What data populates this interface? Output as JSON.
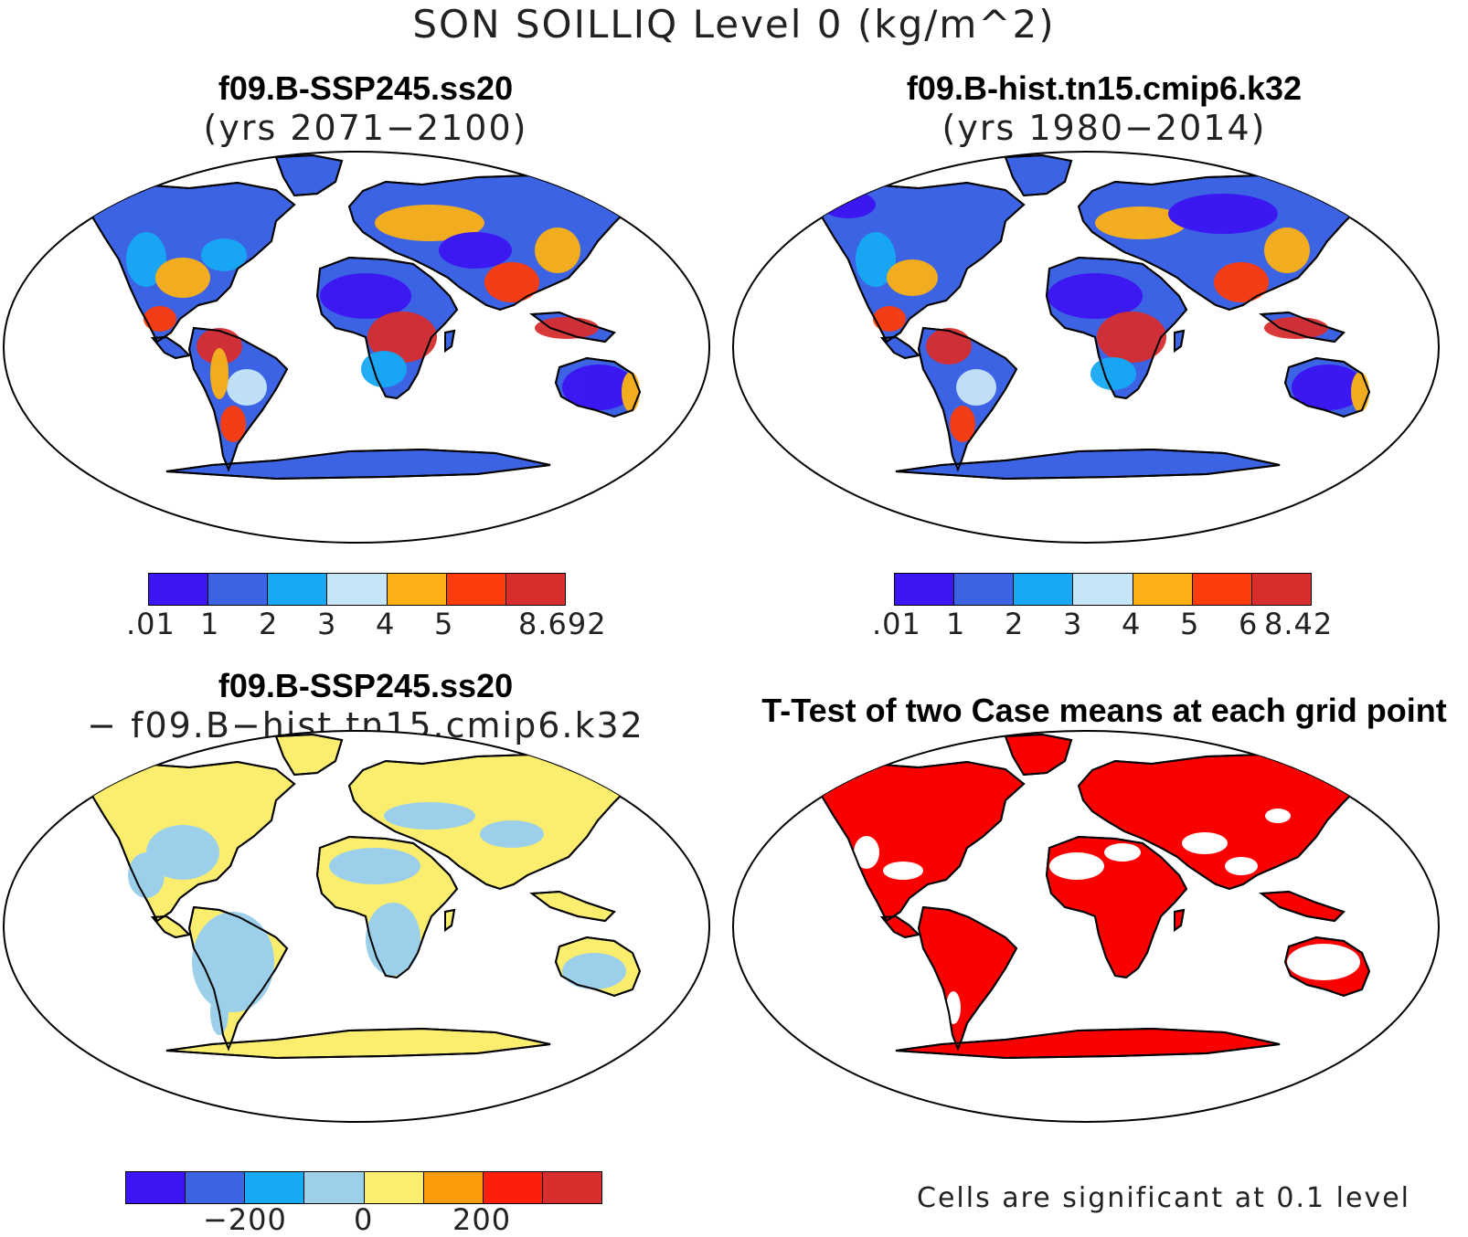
{
  "main_title": "SON SOILLIQ Level 0 (kg/m^2)",
  "panels": [
    {
      "title": "f09.B-SSP245.ss20",
      "subtitle": "(yrs 2071−2100)"
    },
    {
      "title": "f09.B-hist.tn15.cmip6.k32",
      "subtitle": "(yrs 1980−2014)"
    },
    {
      "title": "f09.B-SSP245.ss20",
      "subtitle": "− f09.B−hist.tn15.cmip6.k32"
    },
    {
      "title": "T-Test of two Case means at each grid point",
      "subtitle": ""
    }
  ],
  "colorbars": {
    "cb1": {
      "colors": [
        "#3c15f2",
        "#3c63e3",
        "#17a9f4",
        "#c5e6f6",
        "#fbb016",
        "#fd3c0c",
        "#d72e2e"
      ],
      "labels": [
        ".01",
        "1",
        "2",
        "3",
        "4",
        "5",
        "8.692"
      ]
    },
    "cb2": {
      "colors": [
        "#3c15f2",
        "#3c63e3",
        "#17a9f4",
        "#c5e6f6",
        "#fbb016",
        "#fd3c0c",
        "#d72e2e"
      ],
      "labels": [
        ".01",
        "1",
        "2",
        "3",
        "4",
        "5",
        "6",
        "8.42"
      ]
    },
    "cb3": {
      "colors": [
        "#3c15f2",
        "#3c63e3",
        "#17a9f4",
        "#9cd0ea",
        "#fbee6e",
        "#fb9d0b",
        "#fd1e0c",
        "#d72e2e"
      ],
      "labels": [
        "−200",
        "0",
        "200"
      ]
    }
  },
  "significance_note": "Cells are significant at 0.1 level",
  "map_colors": {
    "p1": {
      "land": "#3c63e3",
      "wet": "#17a9f4",
      "moist": "#fbb016",
      "very_wet": "#fd3c0c",
      "saturated": "#d72e2e",
      "dry": "#3c15f2"
    },
    "p2": {
      "land": "#3c63e3",
      "wet": "#17a9f4",
      "moist": "#fbb016",
      "very_wet": "#fd3c0c",
      "saturated": "#d72e2e",
      "dry": "#3c15f2"
    },
    "p3": {
      "negative": "#9cd0ea",
      "positive": "#fbee6e"
    },
    "p4": {
      "significant": "#fb0000",
      "land_bg": "#ffffff"
    }
  }
}
